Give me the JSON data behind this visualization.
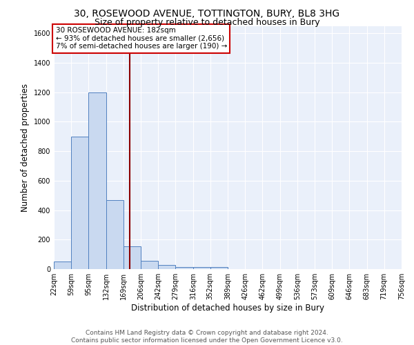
{
  "title_line1": "30, ROSEWOOD AVENUE, TOTTINGTON, BURY, BL8 3HG",
  "title_line2": "Size of property relative to detached houses in Bury",
  "xlabel": "Distribution of detached houses by size in Bury",
  "ylabel": "Number of detached properties",
  "bar_color": "#c9d9f0",
  "bar_edge_color": "#5080c0",
  "bg_color": "#eaf0fa",
  "grid_color": "#ffffff",
  "annotation_box_color": "#cc0000",
  "annotation_line1": "30 ROSEWOOD AVENUE: 182sqm",
  "annotation_line2": "← 93% of detached houses are smaller (2,656)",
  "annotation_line3": "7% of semi-detached houses are larger (190) →",
  "property_line_x": 182,
  "property_line_color": "#8b0000",
  "bin_edges": [
    22,
    59,
    95,
    132,
    169,
    206,
    242,
    279,
    316,
    352,
    389,
    426,
    462,
    499,
    536,
    573,
    609,
    646,
    683,
    719,
    756
  ],
  "bin_counts": [
    50,
    900,
    1200,
    470,
    155,
    55,
    30,
    15,
    12,
    12,
    0,
    0,
    0,
    0,
    0,
    0,
    0,
    0,
    0,
    0
  ],
  "ylim": [
    0,
    1650
  ],
  "yticks": [
    0,
    200,
    400,
    600,
    800,
    1000,
    1200,
    1400,
    1600
  ],
  "footer_line1": "Contains HM Land Registry data © Crown copyright and database right 2024.",
  "footer_line2": "Contains public sector information licensed under the Open Government Licence v3.0.",
  "title_fontsize": 10,
  "subtitle_fontsize": 9,
  "axis_label_fontsize": 8.5,
  "tick_fontsize": 7,
  "footer_fontsize": 6.5,
  "annotation_fontsize": 7.5
}
